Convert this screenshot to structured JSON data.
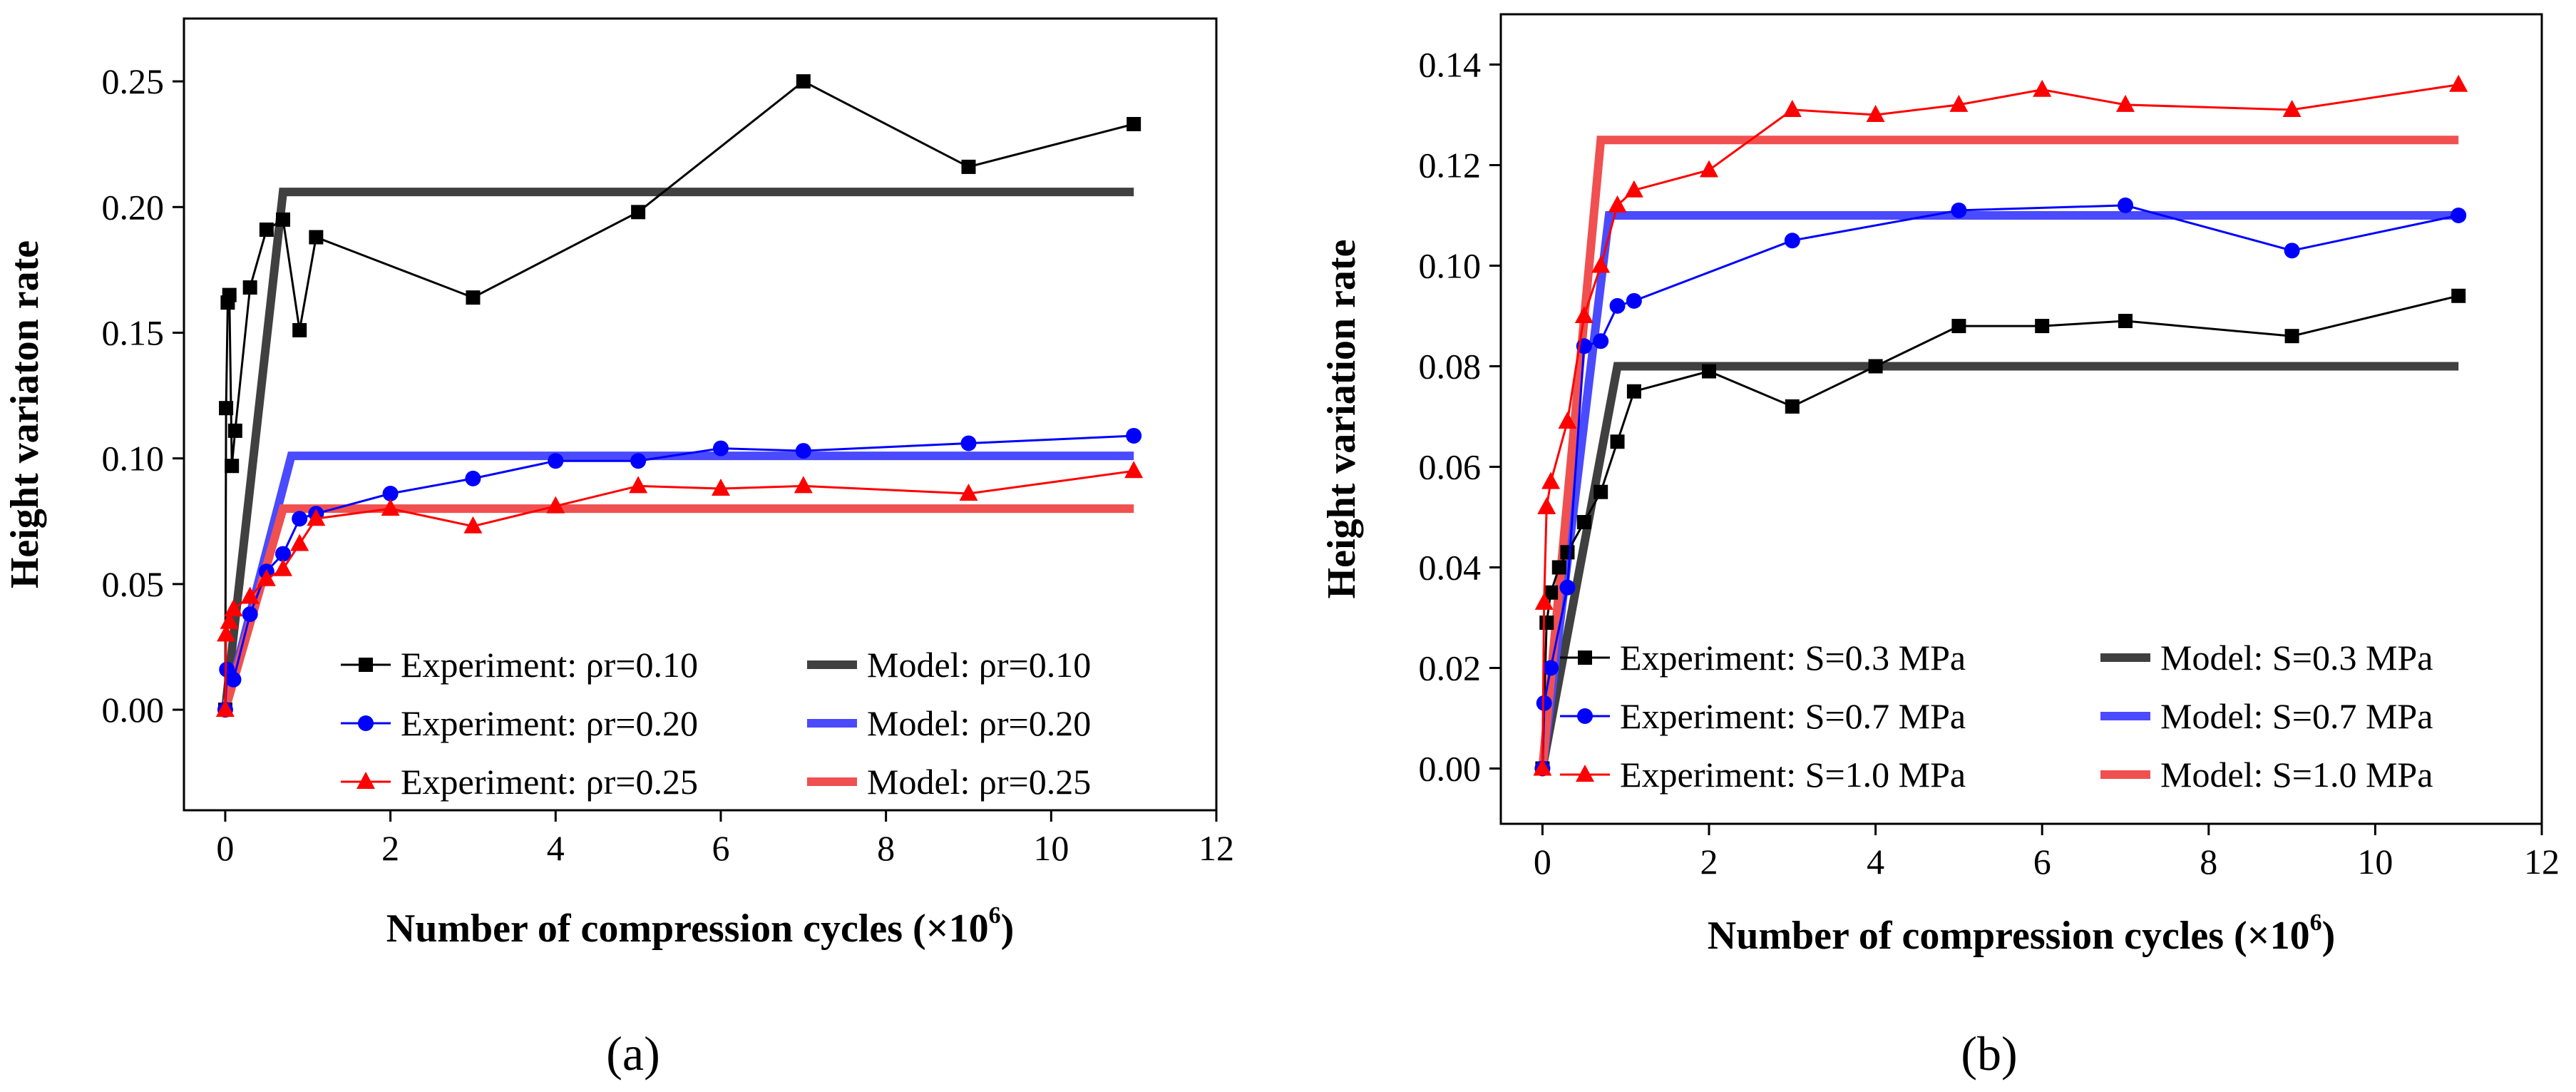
{
  "chart_data": [
    {
      "type": "line",
      "panel_label": "(a)",
      "xlabel_main": "Number of compression cycles (×10",
      "xlabel_sup": "6",
      "xlabel_end": ")",
      "ylabel": "Height variaton rate",
      "xlim": [
        -0.5,
        12
      ],
      "ylim": [
        -0.04,
        0.275
      ],
      "xticks": [
        0,
        2,
        4,
        6,
        8,
        10,
        12
      ],
      "xtick_labels": [
        "0",
        "2",
        "4",
        "6",
        "8",
        "10",
        "12"
      ],
      "yticks": [
        0,
        0.05,
        0.1,
        0.15,
        0.2,
        0.25
      ],
      "ytick_labels": [
        "0.00",
        "0.05",
        "0.10",
        "0.15",
        "0.20",
        "0.25"
      ],
      "legend_position": "bottom-right",
      "series": [
        {
          "name": "Experiment: ρr=0.10",
          "kind": "experiment",
          "marker": "square",
          "color": "#000000",
          "x": [
            0,
            0.01,
            0.03,
            0.05,
            0.08,
            0.12,
            0.3,
            0.5,
            0.7,
            0.9,
            1.1,
            3,
            5,
            7,
            9,
            11
          ],
          "y": [
            0,
            0.12,
            0.162,
            0.165,
            0.097,
            0.111,
            0.168,
            0.191,
            0.195,
            0.151,
            0.188,
            0.164,
            0.198,
            0.25,
            0.216,
            0.233
          ]
        },
        {
          "name": "Model: ρr=0.10",
          "kind": "model",
          "color": "#404040",
          "x": [
            0,
            0.7,
            11
          ],
          "y": [
            0,
            0.206,
            0.206
          ]
        },
        {
          "name": "Experiment: ρr=0.20",
          "kind": "experiment",
          "marker": "circle",
          "color": "#0000ff",
          "x": [
            0,
            0.02,
            0.1,
            0.3,
            0.5,
            0.7,
            0.9,
            1.1,
            2,
            3,
            4,
            5,
            6,
            7,
            9,
            11
          ],
          "y": [
            0,
            0.016,
            0.012,
            0.038,
            0.055,
            0.062,
            0.076,
            0.078,
            0.086,
            0.092,
            0.099,
            0.099,
            0.104,
            0.103,
            0.106,
            0.109
          ]
        },
        {
          "name": "Model: ρr=0.20",
          "kind": "model",
          "color": "#4a4aff",
          "x": [
            0,
            0.8,
            11
          ],
          "y": [
            0,
            0.101,
            0.101
          ]
        },
        {
          "name": "Experiment: ρr=0.25",
          "kind": "experiment",
          "marker": "triangle",
          "color": "#ff0000",
          "x": [
            0,
            0.01,
            0.05,
            0.1,
            0.3,
            0.5,
            0.7,
            0.9,
            1.1,
            2,
            3,
            4,
            5,
            6,
            7,
            9,
            11
          ],
          "y": [
            0,
            0.03,
            0.035,
            0.04,
            0.045,
            0.052,
            0.056,
            0.066,
            0.076,
            0.08,
            0.073,
            0.081,
            0.089,
            0.088,
            0.089,
            0.086,
            0.095
          ]
        },
        {
          "name": "Model: ρr=0.25",
          "kind": "model",
          "color": "#f05050",
          "x": [
            0,
            0.7,
            11
          ],
          "y": [
            0,
            0.08,
            0.08
          ]
        }
      ]
    },
    {
      "type": "line",
      "panel_label": "(b)",
      "xlabel_main": "Number of compression cycles (×10",
      "xlabel_sup": "6",
      "xlabel_end": ")",
      "ylabel": "Height variation rate",
      "xlim": [
        -0.5,
        12
      ],
      "ylim": [
        -0.011,
        0.15
      ],
      "xticks": [
        0,
        2,
        4,
        6,
        8,
        10,
        12
      ],
      "xtick_labels": [
        "0",
        "2",
        "4",
        "6",
        "8",
        "10",
        "12"
      ],
      "yticks": [
        0,
        0.02,
        0.04,
        0.06,
        0.08,
        0.1,
        0.12,
        0.14
      ],
      "ytick_labels": [
        "0.00",
        "0.02",
        "0.04",
        "0.06",
        "0.08",
        "0.10",
        "0.12",
        "0.14"
      ],
      "legend_position": "bottom-right",
      "series": [
        {
          "name": "Experiment: S=0.3 MPa",
          "kind": "experiment",
          "marker": "square",
          "color": "#000000",
          "x": [
            0,
            0.05,
            0.1,
            0.2,
            0.3,
            0.5,
            0.7,
            0.9,
            1.1,
            2,
            3,
            4,
            5,
            6,
            7,
            9,
            11
          ],
          "y": [
            0,
            0.029,
            0.035,
            0.04,
            0.043,
            0.049,
            0.055,
            0.065,
            0.075,
            0.079,
            0.072,
            0.08,
            0.088,
            0.088,
            0.089,
            0.086,
            0.094
          ]
        },
        {
          "name": "Model: S=0.3 MPa",
          "kind": "model",
          "color": "#404040",
          "x": [
            0,
            0.9,
            11
          ],
          "y": [
            0,
            0.08,
            0.08
          ]
        },
        {
          "name": "Experiment: S=0.7 MPa",
          "kind": "experiment",
          "marker": "circle",
          "color": "#0000ff",
          "x": [
            0,
            0.02,
            0.1,
            0.3,
            0.5,
            0.7,
            0.9,
            1.1,
            3,
            5,
            7,
            9,
            11
          ],
          "y": [
            0,
            0.013,
            0.02,
            0.036,
            0.084,
            0.085,
            0.092,
            0.093,
            0.105,
            0.111,
            0.112,
            0.103,
            0.11
          ]
        },
        {
          "name": "Model: S=0.7 MPa",
          "kind": "model",
          "color": "#4a4aff",
          "x": [
            0,
            0.8,
            11
          ],
          "y": [
            0,
            0.11,
            0.11
          ]
        },
        {
          "name": "Experiment: S=1.0 MPa",
          "kind": "experiment",
          "marker": "triangle",
          "color": "#ff0000",
          "x": [
            0,
            0.02,
            0.05,
            0.1,
            0.3,
            0.5,
            0.7,
            0.9,
            1.1,
            2,
            3,
            4,
            5,
            6,
            7,
            9,
            11
          ],
          "y": [
            0,
            0.033,
            0.052,
            0.057,
            0.069,
            0.09,
            0.1,
            0.112,
            0.115,
            0.119,
            0.131,
            0.13,
            0.132,
            0.135,
            0.132,
            0.131,
            0.136
          ]
        },
        {
          "name": "Model: S=1.0 MPa",
          "kind": "model",
          "color": "#f05050",
          "x": [
            0,
            0.7,
            11
          ],
          "y": [
            0,
            0.125,
            0.125
          ]
        }
      ]
    }
  ]
}
